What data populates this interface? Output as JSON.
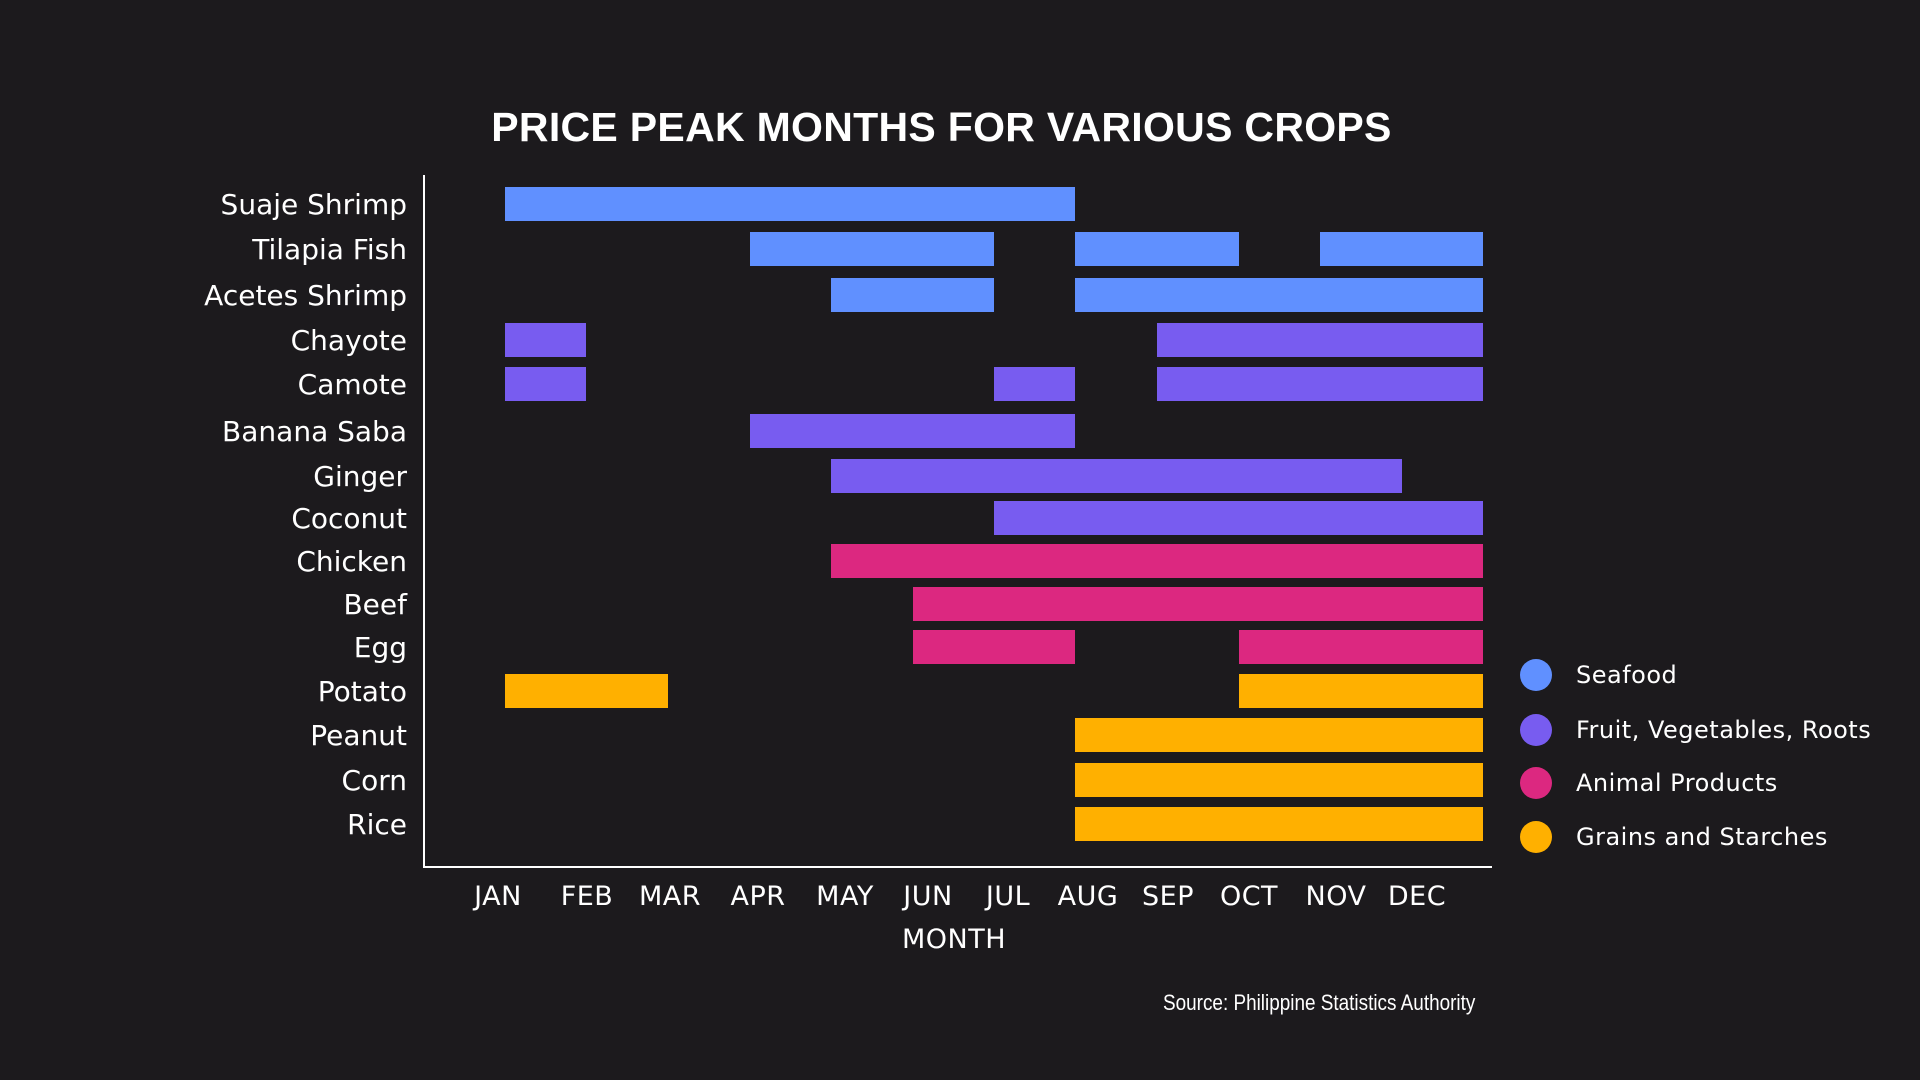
{
  "chart_data": {
    "type": "gantt",
    "title": "PRICE PEAK MONTHS FOR VARIOUS CROPS",
    "xlabel": "MONTH",
    "ylabel": "",
    "months": [
      "JAN",
      "FEB",
      "MAR",
      "APR",
      "MAY",
      "JUN",
      "JUL",
      "AUG",
      "SEP",
      "OCT",
      "NOV",
      "DEC"
    ],
    "categories_legend": [
      {
        "name": "Seafood",
        "color": "#6090ff"
      },
      {
        "name": "Fruit, Vegetables, Roots",
        "color": "#785cf0"
      },
      {
        "name": "Animal Products",
        "color": "#dc2880"
      },
      {
        "name": "Grains and Starches",
        "color": "#ffb000"
      }
    ],
    "crops": [
      {
        "name": "Suaje Shrimp",
        "group": "Seafood",
        "peaks": [
          [
            "JAN",
            "JUL"
          ]
        ]
      },
      {
        "name": "Tilapia Fish",
        "group": "Seafood",
        "peaks": [
          [
            "APR",
            "JUN"
          ],
          [
            "AUG",
            "SEP"
          ],
          [
            "NOV",
            "DEC"
          ]
        ]
      },
      {
        "name": "Acetes Shrimp",
        "group": "Seafood",
        "peaks": [
          [
            "MAY",
            "JUN"
          ],
          [
            "AUG",
            "DEC"
          ]
        ]
      },
      {
        "name": "Chayote",
        "group": "Fruit, Vegetables, Roots",
        "peaks": [
          [
            "JAN",
            "JAN"
          ],
          [
            "SEP",
            "DEC"
          ]
        ]
      },
      {
        "name": "Camote",
        "group": "Fruit, Vegetables, Roots",
        "peaks": [
          [
            "JAN",
            "JAN"
          ],
          [
            "JUL",
            "JUL"
          ],
          [
            "SEP",
            "DEC"
          ]
        ]
      },
      {
        "name": "Banana Saba",
        "group": "Fruit, Vegetables, Roots",
        "peaks": [
          [
            "APR",
            "JUL"
          ]
        ]
      },
      {
        "name": "Ginger",
        "group": "Fruit, Vegetables, Roots",
        "peaks": [
          [
            "MAY",
            "NOV"
          ]
        ]
      },
      {
        "name": "Coconut",
        "group": "Fruit, Vegetables, Roots",
        "peaks": [
          [
            "JUL",
            "DEC"
          ]
        ]
      },
      {
        "name": "Chicken",
        "group": "Animal Products",
        "peaks": [
          [
            "MAY",
            "DEC"
          ]
        ]
      },
      {
        "name": "Beef",
        "group": "Animal Products",
        "peaks": [
          [
            "JUN",
            "DEC"
          ]
        ]
      },
      {
        "name": "Egg",
        "group": "Animal Products",
        "peaks": [
          [
            "JUN",
            "JUL"
          ],
          [
            "OCT",
            "DEC"
          ]
        ]
      },
      {
        "name": "Potato",
        "group": "Grains and Starches",
        "peaks": [
          [
            "JAN",
            "FEB"
          ],
          [
            "OCT",
            "DEC"
          ]
        ]
      },
      {
        "name": "Peanut",
        "group": "Grains and Starches",
        "peaks": [
          [
            "AUG",
            "DEC"
          ]
        ]
      },
      {
        "name": "Corn",
        "group": "Grains and Starches",
        "peaks": [
          [
            "AUG",
            "DEC"
          ]
        ]
      },
      {
        "name": "Rice",
        "group": "Grains and Starches",
        "peaks": [
          [
            "AUG",
            "DEC"
          ]
        ]
      }
    ],
    "legend_position": "right",
    "grid": false
  },
  "source": "Source: Philippine Statistics Authority"
}
